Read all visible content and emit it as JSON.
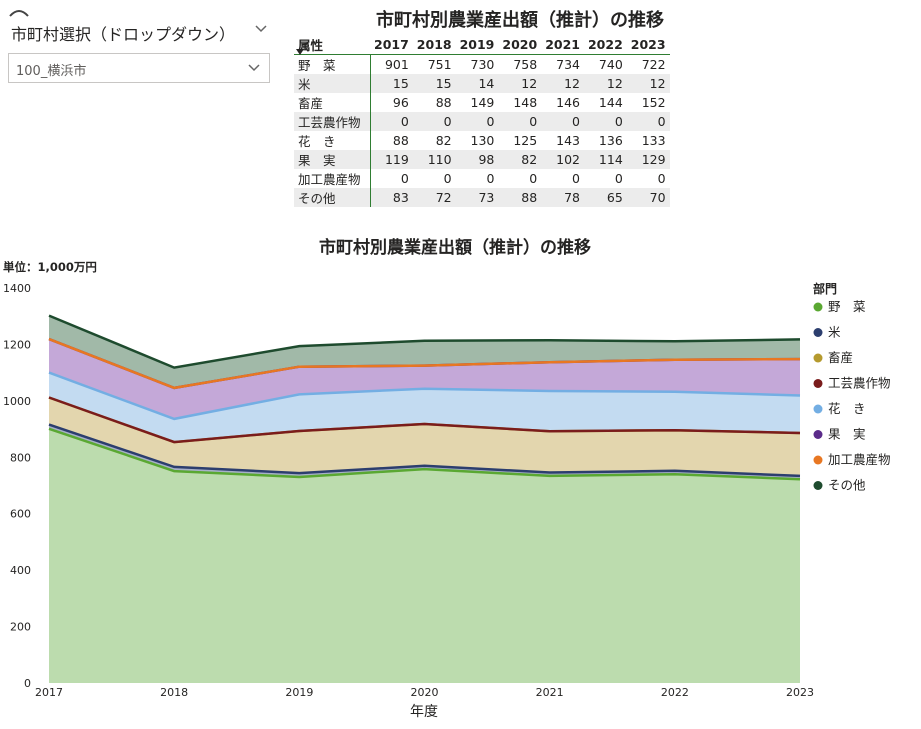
{
  "slicer": {
    "label": "市町村選択（ドロップダウン）",
    "value": "100_横浜市"
  },
  "table": {
    "title": "市町村別農業産出額（推計）の推移",
    "row_header": "属性",
    "years": [
      "2017",
      "2018",
      "2019",
      "2020",
      "2021",
      "2022",
      "2023"
    ],
    "rows": [
      {
        "label": "野　菜",
        "values": [
          "901",
          "751",
          "730",
          "758",
          "734",
          "740",
          "722"
        ]
      },
      {
        "label": "米",
        "values": [
          "15",
          "15",
          "14",
          "12",
          "12",
          "12",
          "12"
        ]
      },
      {
        "label": "畜産",
        "values": [
          "96",
          "88",
          "149",
          "148",
          "146",
          "144",
          "152"
        ]
      },
      {
        "label": "工芸農作物",
        "values": [
          "0",
          "0",
          "0",
          "0",
          "0",
          "0",
          "0"
        ]
      },
      {
        "label": "花　き",
        "values": [
          "88",
          "82",
          "130",
          "125",
          "143",
          "136",
          "133"
        ]
      },
      {
        "label": "果　実",
        "values": [
          "119",
          "110",
          "98",
          "82",
          "102",
          "114",
          "129"
        ]
      },
      {
        "label": "加工農産物",
        "values": [
          "0",
          "0",
          "0",
          "0",
          "0",
          "0",
          "0"
        ]
      },
      {
        "label": "その他",
        "values": [
          "83",
          "72",
          "73",
          "88",
          "78",
          "65",
          "70"
        ]
      }
    ]
  },
  "chart_data": {
    "type": "area",
    "stacked": true,
    "title": "市町村別農業産出額（推計）の推移",
    "unit_label": "単位：1,000万円",
    "xlabel": "年度",
    "ylabel": "",
    "x": [
      "2017",
      "2018",
      "2019",
      "2020",
      "2021",
      "2022",
      "2023"
    ],
    "ylim": [
      0,
      1400
    ],
    "yticks": [
      "0",
      "200",
      "400",
      "600",
      "800",
      "1000",
      "1200",
      "1400"
    ],
    "legend_title": "部門",
    "legend_position": "right",
    "series": [
      {
        "name": "野　菜",
        "values": [
          901,
          751,
          730,
          758,
          734,
          740,
          722
        ],
        "line_color": "#5aa832",
        "fill_color": "#bcdcae"
      },
      {
        "name": "米",
        "values": [
          15,
          15,
          14,
          12,
          12,
          12,
          12
        ],
        "line_color": "#2c3e6e",
        "fill_color": "#a7b0c8"
      },
      {
        "name": "畜産",
        "values": [
          96,
          88,
          149,
          148,
          146,
          144,
          152
        ],
        "line_color": "#b59a2e",
        "fill_color": "#e3d6ae"
      },
      {
        "name": "工芸農作物",
        "values": [
          0,
          0,
          0,
          0,
          0,
          0,
          0
        ],
        "line_color": "#7a1c1c",
        "fill_color": "#c9a5a5"
      },
      {
        "name": "花　き",
        "values": [
          88,
          82,
          130,
          125,
          143,
          136,
          133
        ],
        "line_color": "#73aee3",
        "fill_color": "#c3dbf1"
      },
      {
        "name": "果　実",
        "values": [
          119,
          110,
          98,
          82,
          102,
          114,
          129
        ],
        "line_color": "#5b2b8a",
        "fill_color": "#c4a8d8"
      },
      {
        "name": "加工農産物",
        "values": [
          0,
          0,
          0,
          0,
          0,
          0,
          0
        ],
        "line_color": "#e87722",
        "fill_color": "#f3c39c"
      },
      {
        "name": "その他",
        "values": [
          83,
          72,
          73,
          88,
          78,
          65,
          70
        ],
        "line_color": "#1e4b2e",
        "fill_color": "#a1b9a8"
      }
    ]
  }
}
